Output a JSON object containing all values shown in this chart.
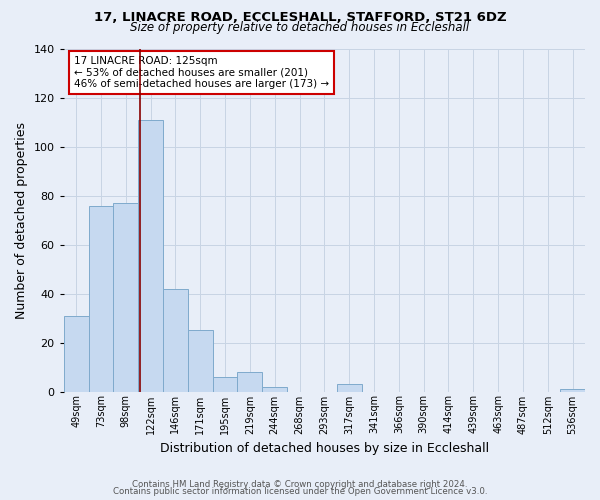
{
  "title": "17, LINACRE ROAD, ECCLESHALL, STAFFORD, ST21 6DZ",
  "subtitle": "Size of property relative to detached houses in Eccleshall",
  "xlabel": "Distribution of detached houses by size in Eccleshall",
  "ylabel": "Number of detached properties",
  "bar_labels": [
    "49sqm",
    "73sqm",
    "98sqm",
    "122sqm",
    "146sqm",
    "171sqm",
    "195sqm",
    "219sqm",
    "244sqm",
    "268sqm",
    "293sqm",
    "317sqm",
    "341sqm",
    "366sqm",
    "390sqm",
    "414sqm",
    "439sqm",
    "463sqm",
    "487sqm",
    "512sqm",
    "536sqm"
  ],
  "bar_heights": [
    31,
    76,
    77,
    111,
    42,
    25,
    6,
    8,
    2,
    0,
    0,
    3,
    0,
    0,
    0,
    0,
    0,
    0,
    0,
    0,
    1
  ],
  "bar_color": "#c6d9f0",
  "bar_edgecolor": "#7faacc",
  "ylim": [
    0,
    140
  ],
  "yticks": [
    0,
    20,
    40,
    60,
    80,
    100,
    120,
    140
  ],
  "property_line_x": 2.575,
  "annotation_title": "17 LINACRE ROAD: 125sqm",
  "annotation_line1": "← 53% of detached houses are smaller (201)",
  "annotation_line2": "46% of semi-detached houses are larger (173) →",
  "annotation_box_color": "#ffffff",
  "annotation_border_color": "#cc0000",
  "property_line_color": "#880000",
  "grid_color": "#c8d4e4",
  "background_color": "#e8eef8",
  "footer_line1": "Contains HM Land Registry data © Crown copyright and database right 2024.",
  "footer_line2": "Contains public sector information licensed under the Open Government Licence v3.0."
}
